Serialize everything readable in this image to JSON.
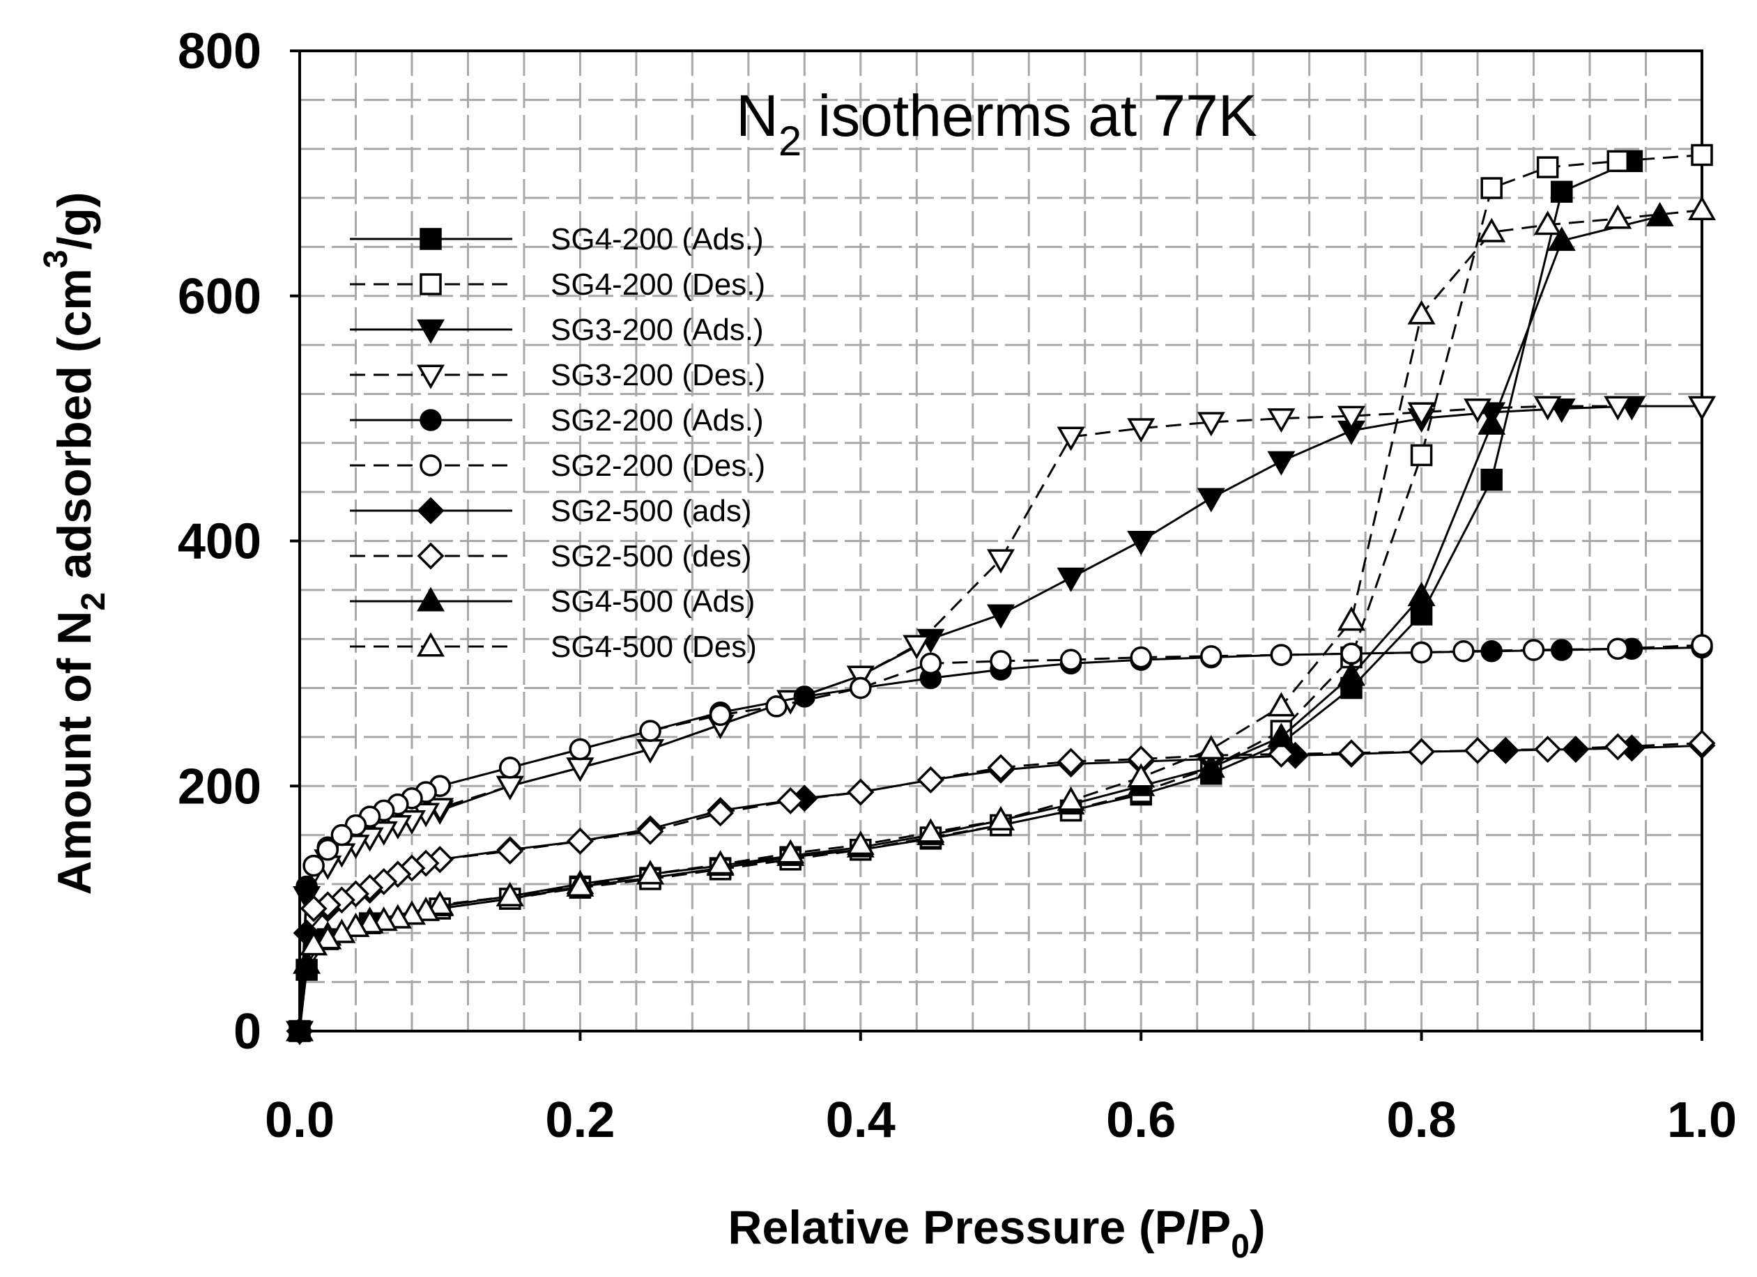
{
  "chart_data": {
    "type": "line",
    "title": {
      "main": "N",
      "sub": "2",
      "rest": " isotherms at 77K"
    },
    "xlabel": {
      "main": "Relative Pressure (P/P",
      "sub": "0",
      "end": ")"
    },
    "ylabel": {
      "main": "Amount of N",
      "sub": "2",
      "mid": " adsorbed (cm",
      "sup": "3",
      "end": "/g)"
    },
    "xlim": [
      0,
      1
    ],
    "ylim": [
      0,
      800
    ],
    "xticks": [
      "0.0",
      "0.2",
      "0.4",
      "0.6",
      "0.8",
      "1.0"
    ],
    "yticks": [
      "0",
      "200",
      "400",
      "600",
      "800"
    ],
    "grid": true,
    "legend_position": "left",
    "series": [
      {
        "name": "SG4-200 (Ads.)",
        "marker": "square",
        "filled": true,
        "dashed": false,
        "x": [
          0.0,
          0.005,
          0.02,
          0.05,
          0.1,
          0.15,
          0.2,
          0.25,
          0.3,
          0.35,
          0.4,
          0.45,
          0.5,
          0.55,
          0.6,
          0.65,
          0.7,
          0.75,
          0.8,
          0.85,
          0.9,
          0.95
        ],
        "y": [
          0,
          50,
          75,
          88,
          100,
          108,
          118,
          125,
          133,
          142,
          148,
          157,
          168,
          180,
          193,
          210,
          235,
          280,
          340,
          450,
          685,
          710
        ]
      },
      {
        "name": "SG4-200 (Des.)",
        "marker": "square",
        "filled": false,
        "dashed": true,
        "x": [
          1.0,
          0.94,
          0.89,
          0.85,
          0.8,
          0.75,
          0.7,
          0.65,
          0.6,
          0.55,
          0.5,
          0.45,
          0.4,
          0.35,
          0.3,
          0.25,
          0.2,
          0.15,
          0.1
        ],
        "y": [
          715,
          710,
          705,
          688,
          470,
          305,
          245,
          215,
          195,
          180,
          168,
          158,
          148,
          140,
          132,
          124,
          117,
          108,
          100
        ]
      },
      {
        "name": "SG3-200 (Ads.)",
        "marker": "triangle-down",
        "filled": true,
        "dashed": false,
        "x": [
          0.0,
          0.005,
          0.02,
          0.05,
          0.1,
          0.15,
          0.2,
          0.25,
          0.3,
          0.35,
          0.4,
          0.45,
          0.5,
          0.55,
          0.6,
          0.65,
          0.7,
          0.75,
          0.8,
          0.85,
          0.9,
          0.95,
          1.0
        ],
        "y": [
          0,
          110,
          140,
          160,
          180,
          200,
          215,
          230,
          250,
          270,
          290,
          320,
          340,
          370,
          400,
          435,
          465,
          490,
          500,
          505,
          508,
          510,
          510
        ]
      },
      {
        "name": "SG3-200 (Des.)",
        "marker": "triangle-down",
        "filled": false,
        "dashed": true,
        "x": [
          1.0,
          0.94,
          0.89,
          0.84,
          0.8,
          0.75,
          0.7,
          0.65,
          0.6,
          0.55,
          0.5,
          0.44,
          0.4,
          0.35,
          0.3,
          0.25,
          0.2,
          0.15,
          0.1,
          0.09,
          0.08,
          0.07,
          0.06,
          0.05,
          0.04,
          0.03,
          0.02
        ],
        "y": [
          510,
          510,
          510,
          508,
          505,
          502,
          500,
          497,
          492,
          485,
          385,
          315,
          290,
          270,
          250,
          230,
          215,
          200,
          182,
          178,
          172,
          168,
          163,
          158,
          152,
          145,
          135
        ]
      },
      {
        "name": "SG2-200 (Ads.)",
        "marker": "circle",
        "filled": true,
        "dashed": false,
        "x": [
          0.0,
          0.005,
          0.02,
          0.05,
          0.1,
          0.15,
          0.2,
          0.25,
          0.3,
          0.36,
          0.4,
          0.45,
          0.5,
          0.55,
          0.6,
          0.65,
          0.7,
          0.75,
          0.8,
          0.85,
          0.9,
          0.95,
          1.0
        ],
        "y": [
          0,
          118,
          150,
          175,
          200,
          215,
          230,
          245,
          260,
          273,
          280,
          288,
          295,
          300,
          303,
          305,
          307,
          308,
          309,
          310,
          311,
          312,
          313
        ]
      },
      {
        "name": "SG2-200 (Des.)",
        "marker": "circle",
        "filled": false,
        "dashed": true,
        "x": [
          1.0,
          0.94,
          0.88,
          0.83,
          0.8,
          0.75,
          0.7,
          0.65,
          0.6,
          0.55,
          0.5,
          0.45,
          0.4,
          0.34,
          0.3,
          0.25,
          0.2,
          0.15,
          0.1,
          0.09,
          0.08,
          0.07,
          0.06,
          0.05,
          0.04,
          0.03,
          0.02,
          0.01
        ],
        "y": [
          315,
          312,
          311,
          310,
          309,
          308,
          307,
          306,
          305,
          303,
          302,
          300,
          280,
          265,
          258,
          245,
          230,
          215,
          200,
          195,
          190,
          185,
          180,
          175,
          168,
          160,
          148,
          135
        ]
      },
      {
        "name": "SG2-500 (ads)",
        "marker": "diamond",
        "filled": true,
        "dashed": false,
        "x": [
          0.0,
          0.005,
          0.02,
          0.05,
          0.1,
          0.15,
          0.2,
          0.25,
          0.3,
          0.36,
          0.4,
          0.45,
          0.5,
          0.55,
          0.6,
          0.65,
          0.71,
          0.75,
          0.8,
          0.86,
          0.91,
          0.95,
          1.0
        ],
        "y": [
          0,
          80,
          100,
          115,
          140,
          148,
          155,
          165,
          180,
          190,
          195,
          205,
          213,
          218,
          220,
          222,
          225,
          226,
          228,
          229,
          230,
          231,
          233
        ]
      },
      {
        "name": "SG2-500 (des)",
        "marker": "diamond",
        "filled": false,
        "dashed": true,
        "x": [
          1.0,
          0.94,
          0.89,
          0.84,
          0.8,
          0.75,
          0.7,
          0.65,
          0.6,
          0.55,
          0.5,
          0.45,
          0.4,
          0.35,
          0.3,
          0.25,
          0.2,
          0.15,
          0.1,
          0.09,
          0.08,
          0.07,
          0.06,
          0.05,
          0.04,
          0.03,
          0.02,
          0.01
        ],
        "y": [
          235,
          232,
          230,
          229,
          228,
          227,
          226,
          225,
          222,
          220,
          215,
          205,
          195,
          188,
          178,
          163,
          155,
          147,
          140,
          137,
          133,
          128,
          122,
          117,
          112,
          107,
          103,
          100
        ]
      },
      {
        "name": "SG4-500 (Ads)",
        "marker": "triangle-up",
        "filled": true,
        "dashed": false,
        "x": [
          0.0,
          0.005,
          0.02,
          0.05,
          0.1,
          0.15,
          0.2,
          0.25,
          0.3,
          0.35,
          0.4,
          0.45,
          0.5,
          0.55,
          0.6,
          0.65,
          0.7,
          0.75,
          0.8,
          0.85,
          0.9,
          0.97
        ],
        "y": [
          0,
          55,
          78,
          90,
          102,
          110,
          120,
          128,
          135,
          143,
          150,
          160,
          172,
          185,
          200,
          215,
          240,
          290,
          355,
          495,
          645,
          665
        ]
      },
      {
        "name": "SG4-500 (Des)",
        "marker": "triangle-up",
        "filled": false,
        "dashed": true,
        "x": [
          1.0,
          0.94,
          0.89,
          0.85,
          0.8,
          0.75,
          0.7,
          0.65,
          0.6,
          0.55,
          0.5,
          0.45,
          0.4,
          0.35,
          0.3,
          0.25,
          0.2,
          0.15,
          0.1,
          0.09,
          0.08,
          0.07,
          0.06,
          0.05,
          0.04,
          0.03,
          0.02,
          0.01
        ],
        "y": [
          670,
          663,
          658,
          652,
          585,
          335,
          265,
          230,
          207,
          188,
          172,
          162,
          152,
          145,
          136,
          128,
          118,
          110,
          103,
          98,
          95,
          92,
          90,
          88,
          85,
          80,
          75,
          70
        ]
      }
    ]
  }
}
